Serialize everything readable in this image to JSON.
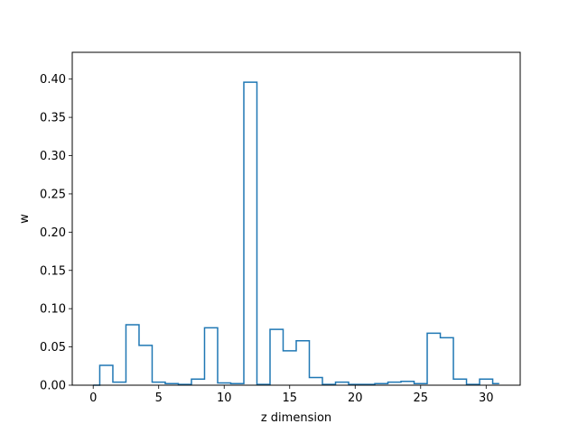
{
  "chart_data": {
    "type": "step",
    "title": "",
    "xlabel": "z dimension",
    "ylabel": "w",
    "x": [
      0,
      1,
      2,
      3,
      4,
      5,
      6,
      7,
      8,
      9,
      10,
      11,
      12,
      13,
      14,
      15,
      16,
      17,
      18,
      19,
      20,
      21,
      22,
      23,
      24,
      25,
      26,
      27,
      28,
      29,
      30,
      31
    ],
    "values": [
      0.0,
      0.026,
      0.004,
      0.079,
      0.052,
      0.004,
      0.002,
      0.001,
      0.008,
      0.075,
      0.003,
      0.002,
      0.396,
      0.001,
      0.073,
      0.045,
      0.058,
      0.01,
      0.001,
      0.004,
      0.001,
      0.001,
      0.002,
      0.004,
      0.005,
      0.002,
      0.068,
      0.062,
      0.008,
      0.001,
      0.008,
      0.002
    ],
    "xlim": [
      -1.6,
      32.6
    ],
    "ylim": [
      0,
      0.435
    ],
    "xticks": [
      0,
      5,
      10,
      15,
      20,
      25,
      30
    ],
    "xtick_labels": [
      "0",
      "5",
      "10",
      "15",
      "20",
      "25",
      "30"
    ],
    "yticks": [
      0.0,
      0.05,
      0.1,
      0.15,
      0.2,
      0.25,
      0.3,
      0.35,
      0.4
    ],
    "ytick_labels": [
      "0.00",
      "0.05",
      "0.10",
      "0.15",
      "0.20",
      "0.25",
      "0.30",
      "0.35",
      "0.40"
    ],
    "grid": false,
    "line_color": "#1f77b4"
  }
}
